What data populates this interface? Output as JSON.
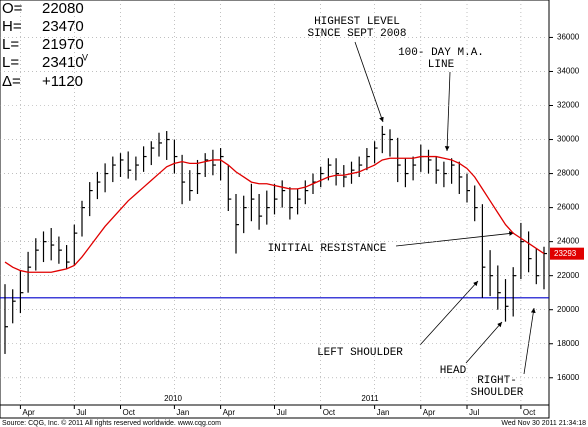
{
  "chart_data": {
    "type": "ohlc",
    "stats": [
      {
        "key": "O=",
        "text": "22080"
      },
      {
        "key": "H=",
        "text": "23470"
      },
      {
        "key": "L=",
        "text": "21970"
      },
      {
        "key": "L=",
        "text": "23410",
        "sup": "V"
      },
      {
        "key": "Δ=",
        "text": "+1120"
      }
    ],
    "categories": [
      null,
      null,
      "Apr",
      null,
      null,
      null,
      null,
      null,
      null,
      "Jul",
      null,
      null,
      null,
      null,
      null,
      "Oct",
      null,
      null,
      null,
      null,
      null,
      null,
      "Jan",
      null,
      null,
      null,
      null,
      null,
      "Apr",
      null,
      null,
      null,
      null,
      null,
      null,
      "Jul",
      null,
      null,
      null,
      null,
      null,
      "Oct",
      null,
      null,
      null,
      null,
      null,
      null,
      "Jan",
      null,
      null,
      null,
      null,
      null,
      "Apr",
      null,
      null,
      null,
      null,
      null,
      "Jul",
      null,
      null,
      null,
      null,
      null,
      null,
      "Oct",
      null,
      null,
      null
    ],
    "years": [
      "2010",
      "2011"
    ],
    "high": [
      21500,
      21200,
      22300,
      23400,
      24200,
      24600,
      24800,
      24300,
      23800,
      25000,
      26400,
      27500,
      28100,
      28600,
      29000,
      29200,
      29300,
      29000,
      29600,
      29900,
      30400,
      30500,
      30000,
      29100,
      28200,
      28800,
      29200,
      29400,
      29500,
      28500,
      26800,
      26700,
      27400,
      26800,
      27000,
      27400,
      27600,
      27200,
      27100,
      27600,
      28000,
      28400,
      28900,
      28900,
      28500,
      28700,
      29000,
      29500,
      29900,
      30800,
      30600,
      30100,
      28900,
      29000,
      29700,
      29400,
      29000,
      28700,
      28900,
      28700,
      28000,
      27300,
      26200,
      23500,
      22600,
      21800,
      22500,
      25100,
      24600,
      23600,
      23700
    ],
    "low": [
      17400,
      19200,
      19800,
      21000,
      22300,
      22800,
      22900,
      22700,
      22400,
      22600,
      24300,
      25500,
      26500,
      26900,
      27500,
      27800,
      27700,
      27600,
      28100,
      28500,
      29000,
      28800,
      28000,
      26200,
      26400,
      26800,
      27800,
      27900,
      27600,
      25800,
      23300,
      24500,
      25200,
      24700,
      25000,
      25600,
      26000,
      25300,
      25600,
      26200,
      26800,
      27200,
      27600,
      27300,
      27200,
      27400,
      27800,
      28200,
      28600,
      29200,
      29000,
      27500,
      27200,
      27600,
      28100,
      28000,
      27400,
      27200,
      27400,
      26800,
      26300,
      25200,
      20700,
      20800,
      20000,
      19300,
      19600,
      21800,
      22200,
      21500,
      21200
    ],
    "close": [
      19000,
      20500,
      21000,
      22500,
      23500,
      24000,
      23800,
      23500,
      22800,
      24500,
      26000,
      27000,
      27500,
      28000,
      28500,
      28800,
      28200,
      28500,
      29000,
      29500,
      29800,
      30000,
      29000,
      27500,
      27000,
      28000,
      28800,
      28500,
      29000,
      26500,
      25000,
      26000,
      26500,
      25500,
      26000,
      26500,
      27000,
      26000,
      26500,
      27000,
      27500,
      28000,
      28500,
      28000,
      27800,
      28200,
      28500,
      29000,
      29500,
      30300,
      30000,
      28500,
      28000,
      28500,
      29000,
      28800,
      28200,
      28000,
      28500,
      27800,
      27000,
      26000,
      22500,
      22000,
      21000,
      20200,
      22000,
      24000,
      23000,
      22000,
      23300
    ],
    "moving_average": {
      "color": "#e00000",
      "values": [
        22800,
        22500,
        22300,
        22200,
        22200,
        22200,
        22200,
        22300,
        22400,
        22600,
        23100,
        23700,
        24300,
        24900,
        25400,
        25900,
        26400,
        26800,
        27200,
        27600,
        28000,
        28400,
        28600,
        28700,
        28600,
        28600,
        28700,
        28800,
        28800,
        28500,
        28100,
        27800,
        27500,
        27400,
        27400,
        27300,
        27200,
        27100,
        27100,
        27200,
        27400,
        27600,
        27800,
        27900,
        27900,
        28000,
        28100,
        28300,
        28500,
        28800,
        28900,
        28900,
        28900,
        28900,
        29000,
        29000,
        29000,
        28900,
        28800,
        28600,
        28300,
        27800,
        27100,
        26400,
        25700,
        25000,
        24500,
        24200,
        23900,
        23600,
        23300
      ]
    },
    "support_line": {
      "value": 20700,
      "color": "#0000cc"
    },
    "last_price": 23293,
    "bar_color": "#000000",
    "ylim": [
      14400,
      38200
    ],
    "yticks": [
      16000,
      18000,
      20000,
      22000,
      24000,
      26000,
      28000,
      30000,
      32000,
      34000,
      36000
    ],
    "grid": true,
    "annotations": [
      {
        "lines": [
          "HIGHEST LEVEL",
          "SINCE SEPT 2008"
        ]
      },
      {
        "lines": [
          "100- DAY M.A.",
          "LINE"
        ]
      },
      {
        "lines": [
          "INITIAL RESISTANCE"
        ]
      },
      {
        "lines": [
          "LEFT SHOULDER"
        ]
      },
      {
        "lines": [
          "HEAD"
        ]
      },
      {
        "lines": [
          "RIGHT-",
          "SHOULDER"
        ]
      }
    ],
    "source": "Source: CQG, Inc. © 2011 All rights reserved worldwide. www.cqg.com",
    "timestamp": "Wed Nov 30 2011 21:34:18"
  }
}
